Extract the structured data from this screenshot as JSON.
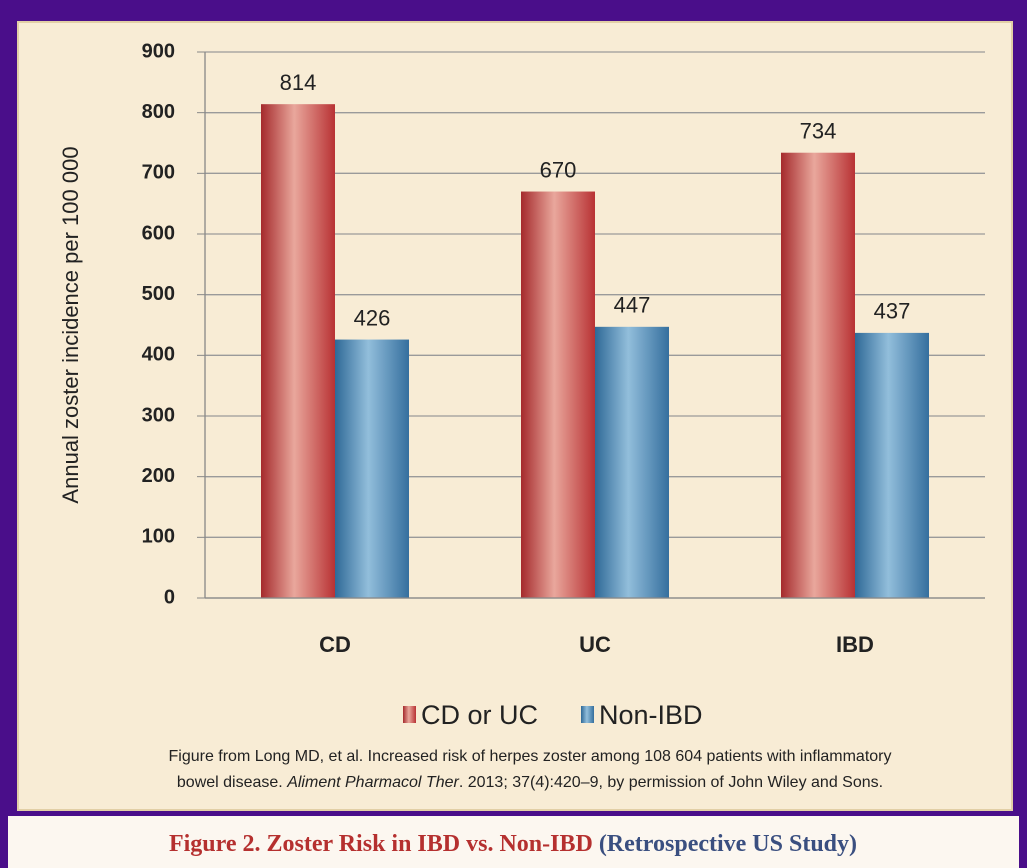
{
  "chart_data": {
    "type": "bar",
    "ylabel": "Annual zoster incidence per 100 000",
    "categories": [
      "CD",
      "UC",
      "IBD"
    ],
    "series": [
      {
        "name": "CD or UC",
        "color": "#c0383a",
        "values": [
          814,
          670,
          734
        ]
      },
      {
        "name": "Non-IBD",
        "color": "#3c7cab",
        "values": [
          426,
          447,
          437
        ]
      }
    ],
    "ylim": [
      0,
      900
    ],
    "yticks": [
      0,
      100,
      200,
      300,
      400,
      500,
      600,
      700,
      800,
      900
    ],
    "grid": true,
    "legend": "bottom",
    "source": {
      "line1": "Figure from Long MD, et al. Increased risk of herpes zoster among 108 604 patients with inflammatory",
      "line2_before": "bowel disease.",
      "journal": "Aliment Pharmacol Ther",
      "line2_after": ". 2013; 37(4):420–9, by permission of John Wiley and Sons."
    },
    "caption": {
      "main": "Figure 2. Zoster Risk in IBD vs. Non-IBD",
      "study": "(Retrospective US Study)"
    }
  }
}
